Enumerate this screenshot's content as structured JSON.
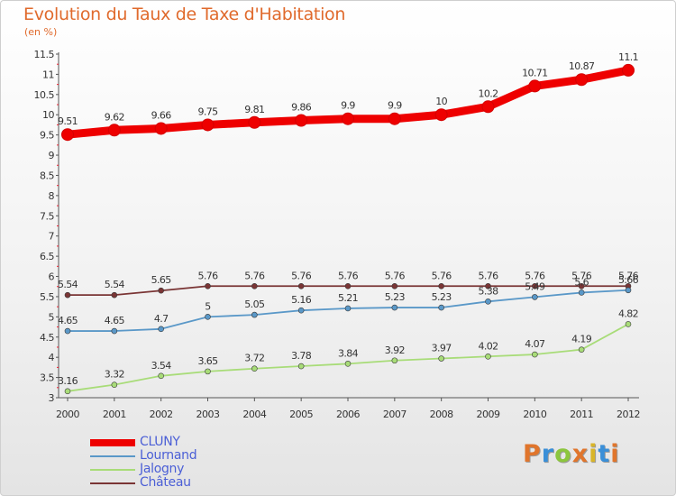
{
  "header": {
    "title": "Evolution du Taux de Taxe d'Habitation",
    "subtitle": "(en %)"
  },
  "logo": {
    "text": "Proxiti",
    "colors": [
      "#e0752c",
      "#3a8fd8",
      "#8cc63e",
      "#e0752c",
      "#d9b52a",
      "#3a8fd8",
      "#e0752c"
    ]
  },
  "chart_data": {
    "type": "line",
    "x": [
      "2000",
      "2001",
      "2002",
      "2003",
      "2004",
      "2005",
      "2006",
      "2007",
      "2008",
      "2009",
      "2010",
      "2011",
      "2012"
    ],
    "ylim": [
      3,
      11.5
    ],
    "yticks": [
      "3",
      "3.5",
      "4",
      "4.5",
      "5",
      "5.5",
      "6",
      "6.5",
      "7",
      "7.5",
      "8",
      "8.5",
      "9",
      "9.5",
      "10",
      "10.5",
      "11",
      "11.5"
    ],
    "grid": false,
    "legend_position": "bottom-left",
    "series": [
      {
        "name": "CLUNY",
        "color": "#ee0000",
        "values": [
          9.51,
          9.62,
          9.66,
          9.75,
          9.81,
          9.86,
          9.9,
          9.9,
          10,
          10.2,
          10.71,
          10.87,
          11.1
        ],
        "labels": [
          "9.51",
          "9.62",
          "9.66",
          "9.75",
          "9.81",
          "9.86",
          "9.9",
          "9.9",
          "10",
          "10.2",
          "10.71",
          "10.87",
          "11.1"
        ]
      },
      {
        "name": "Lournand",
        "color": "#5a98c8",
        "values": [
          4.65,
          4.65,
          4.7,
          5,
          5.05,
          5.16,
          5.21,
          5.23,
          5.23,
          5.38,
          5.49,
          5.6,
          5.66
        ],
        "labels": [
          "4.65",
          "4.65",
          "4.7",
          "5",
          "5.05",
          "5.16",
          "5.21",
          "5.23",
          "5.23",
          "5.38",
          "5.49",
          "5.6",
          "5.66"
        ]
      },
      {
        "name": "Jalogny",
        "color": "#a8dc78",
        "values": [
          3.16,
          3.32,
          3.54,
          3.65,
          3.72,
          3.78,
          3.84,
          3.92,
          3.97,
          4.02,
          4.07,
          4.19,
          4.82
        ],
        "labels": [
          "3.16",
          "3.32",
          "3.54",
          "3.65",
          "3.72",
          "3.78",
          "3.84",
          "3.92",
          "3.97",
          "4.02",
          "4.07",
          "4.19",
          "4.82"
        ]
      },
      {
        "name": "Château",
        "color": "#7a3535",
        "values": [
          5.54,
          5.54,
          5.65,
          5.76,
          5.76,
          5.76,
          5.76,
          5.76,
          5.76,
          5.76,
          5.76,
          5.76,
          5.76
        ],
        "labels": [
          "5.54",
          "5.54",
          "5.65",
          "5.76",
          "5.76",
          "5.76",
          "5.76",
          "5.76",
          "5.76",
          "5.76",
          "5.76",
          "5.76",
          "5.76"
        ]
      }
    ]
  }
}
